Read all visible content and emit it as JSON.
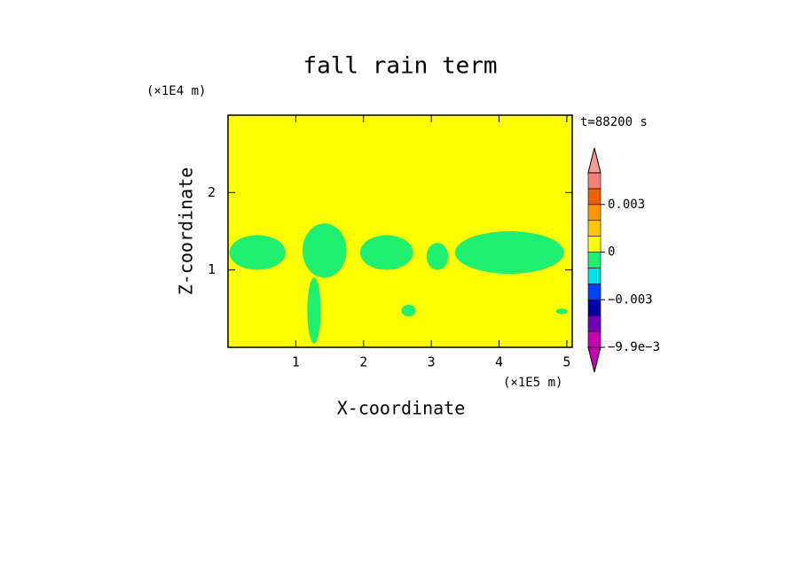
{
  "chart_data": {
    "type": "contour",
    "title": "fall rain term",
    "xlabel": "X-coordinate",
    "ylabel": "Z-coordinate",
    "x_unit": "(×1E5 m)",
    "y_unit": "(×1E4 m)",
    "time_label": "t=88200 s",
    "xlim": [
      0,
      5.08
    ],
    "ylim": [
      0,
      3
    ],
    "xticks": [
      1,
      2,
      3,
      4,
      5
    ],
    "yticks": [
      1,
      2
    ],
    "background_value": 0.0005,
    "regions": [
      {
        "x": [
          0.02,
          0.85
        ],
        "z": [
          1.0,
          1.45
        ],
        "value": -0.0005
      },
      {
        "x": [
          1.1,
          1.75
        ],
        "z": [
          0.9,
          1.6
        ],
        "value": -0.0005
      },
      {
        "x": [
          1.17,
          1.37
        ],
        "z": [
          0.05,
          0.9
        ],
        "value": -0.0005
      },
      {
        "x": [
          1.95,
          2.73
        ],
        "z": [
          1.0,
          1.45
        ],
        "value": -0.0005
      },
      {
        "x": [
          2.93,
          3.25
        ],
        "z": [
          1.0,
          1.35
        ],
        "value": -0.0005
      },
      {
        "x": [
          3.35,
          4.96
        ],
        "z": [
          0.95,
          1.5
        ],
        "value": -0.0005
      },
      {
        "x": [
          2.56,
          2.77
        ],
        "z": [
          0.4,
          0.55
        ],
        "value": -0.0005
      },
      {
        "x": [
          4.84,
          5.01
        ],
        "z": [
          0.43,
          0.5
        ],
        "value": -0.0005
      }
    ],
    "colorbar": {
      "boundaries": [
        -0.0099,
        -0.007,
        -0.004,
        -0.003,
        -0.002,
        -0.001,
        0,
        0.001,
        0.002,
        0.003,
        0.004,
        0.006
      ],
      "colors": [
        "#c800b4",
        "#7000b4",
        "#0000a0",
        "#0040ff",
        "#00e0e8",
        "#20f070",
        "#ffff00",
        "#ffc800",
        "#ff9600",
        "#f06000",
        "#f08078"
      ],
      "extend_colors": [
        "#c800b4",
        "#f0a090"
      ],
      "ticks": [
        {
          "value": -0.0099,
          "label": "−9.9e−3"
        },
        {
          "value": -0.003,
          "label": "−0.003"
        },
        0,
        0.003
      ]
    }
  }
}
